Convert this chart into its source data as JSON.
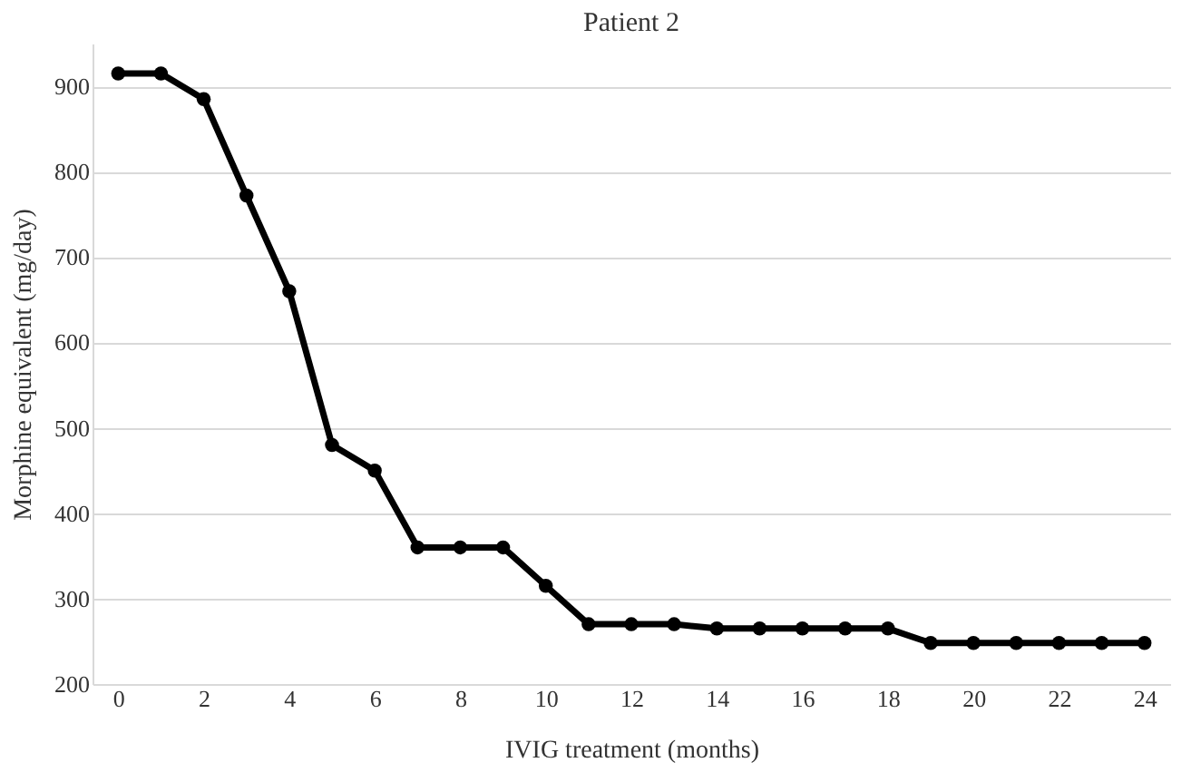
{
  "chart_data": {
    "type": "line",
    "title": "Patient 2",
    "xlabel": "IVIG treatment (months)",
    "ylabel": "Morphine equivalent (mg/day)",
    "x": [
      0,
      1,
      2,
      3,
      4,
      5,
      6,
      7,
      8,
      9,
      10,
      11,
      12,
      13,
      14,
      15,
      16,
      17,
      18,
      19,
      20,
      21,
      22,
      23,
      24
    ],
    "series": [
      {
        "color": "#000000",
        "values": [
          915,
          915,
          885,
          772,
          660,
          480,
          450,
          360,
          360,
          360,
          315,
          270,
          270,
          270,
          265,
          265,
          265,
          265,
          265,
          248,
          248,
          248,
          248,
          248,
          248
        ]
      }
    ],
    "xlim": [
      -0.6,
      24.6
    ],
    "xticks": [
      0,
      2,
      4,
      6,
      8,
      10,
      12,
      14,
      16,
      18,
      20,
      22,
      24
    ],
    "ylim": [
      200,
      950
    ],
    "yticks": [
      200,
      300,
      400,
      500,
      600,
      700,
      800,
      900
    ],
    "grid": "y",
    "marker": "circle",
    "line_style": "solid"
  }
}
